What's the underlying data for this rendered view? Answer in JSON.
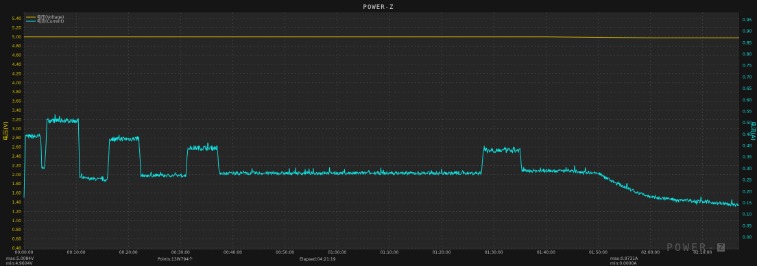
{
  "window": {
    "title": "POWER-Z"
  },
  "legend": [
    {
      "label": "电压(Voltage)",
      "color": "#c8b400"
    },
    {
      "label": "电流(Current)",
      "color": "#10e8e8"
    }
  ],
  "axes": {
    "left_label": "电压(V)",
    "right_label": "电流(A)",
    "left_color": "#e0c400",
    "right_color": "#18e0e0"
  },
  "stats": {
    "voltage_max": "max:5.0084V",
    "voltage_min": "min:4.9604V",
    "points": "Points:13W794个",
    "elapsed": "Elapsed:04:21:19",
    "current_max": "max:0.9731A",
    "current_min": "min:0.0000A"
  },
  "watermark": {
    "text": "POWER-",
    "badge": "Z"
  },
  "chart_data": {
    "type": "line",
    "title": "POWER-Z",
    "xlabel": "",
    "ylabel": "电压(V)",
    "y2label": "电流(A)",
    "grid": true,
    "legend_position": "top-left",
    "x_ticks": [
      "00:00:00",
      "00:10:00",
      "00:20:00",
      "00:30:00",
      "00:40:00",
      "00:50:00",
      "01:00:00",
      "01:10:00",
      "01:20:00",
      "01:30:00",
      "01:40:00",
      "01:50:00",
      "02:00:00",
      "02:10:00"
    ],
    "y_ticks": [
      "0.40",
      "0.60",
      "0.80",
      "1.00",
      "1.20",
      "1.40",
      "1.60",
      "1.80",
      "2.00",
      "2.20",
      "2.40",
      "2.60",
      "2.80",
      "3.00",
      "3.20",
      "3.40",
      "3.60",
      "3.80",
      "4.00",
      "4.20",
      "4.40",
      "4.60",
      "4.80",
      "5.00",
      "5.20",
      "5.40"
    ],
    "y2_ticks": [
      "0.00",
      "0.05",
      "0.10",
      "0.15",
      "0.20",
      "0.25",
      "0.30",
      "0.35",
      "0.40",
      "0.45",
      "0.50",
      "0.55",
      "0.60",
      "0.65",
      "0.70",
      "0.75",
      "0.80",
      "0.85",
      "0.90",
      "0.95"
    ],
    "xlim_minutes": [
      0,
      137
    ],
    "ylim": [
      0.4,
      5.5
    ],
    "y2lim": [
      0.0,
      0.97
    ],
    "series": [
      {
        "name": "电压(Voltage)",
        "axis": "left",
        "color": "#c8b400",
        "x_minutes": [
          0,
          20,
          40,
          60,
          80,
          100,
          110,
          120,
          137
        ],
        "values": [
          5.0,
          5.0,
          5.0,
          5.0,
          5.0,
          5.0,
          4.99,
          4.98,
          4.98
        ]
      },
      {
        "name": "电流(Current)",
        "axis": "right",
        "color": "#10e8e8",
        "x_minutes": [
          0,
          0.3,
          0.5,
          3.2,
          3.4,
          3.7,
          4.0,
          4.4,
          4.6,
          5.2,
          10.4,
          10.7,
          16.0,
          16.4,
          22.0,
          22.4,
          31.0,
          31.4,
          37.0,
          37.4,
          40,
          60,
          80,
          87.6,
          88.0,
          95.0,
          95.4,
          104,
          110,
          113,
          117,
          120,
          125,
          130,
          137
        ],
        "values": [
          0.18,
          0.44,
          0.44,
          0.44,
          0.31,
          0.3,
          0.31,
          0.51,
          0.51,
          0.51,
          0.51,
          0.26,
          0.25,
          0.43,
          0.43,
          0.27,
          0.27,
          0.39,
          0.39,
          0.28,
          0.28,
          0.28,
          0.28,
          0.28,
          0.38,
          0.38,
          0.29,
          0.29,
          0.28,
          0.24,
          0.2,
          0.175,
          0.165,
          0.155,
          0.14
        ]
      }
    ]
  }
}
